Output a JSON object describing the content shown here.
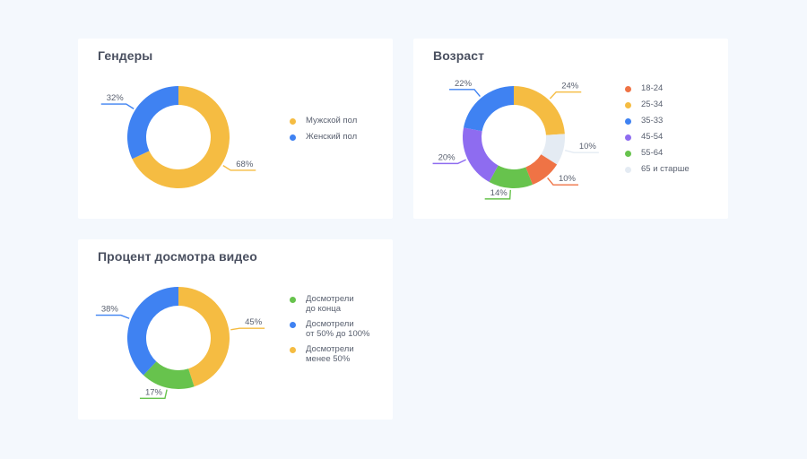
{
  "charts": {
    "gender": {
      "title": "Гендеры"
    },
    "age": {
      "title": "Возраст"
    },
    "view": {
      "title": "Процент досмотра видео"
    }
  },
  "chart_data": [
    {
      "type": "pie",
      "title": "Гендеры",
      "slices": [
        {
          "name": "Мужской пол",
          "value": 68,
          "label": "68%",
          "color": "#f5bc42"
        },
        {
          "name": "Женский пол",
          "value": 32,
          "label": "32%",
          "color": "#3f82f2"
        }
      ]
    },
    {
      "type": "pie",
      "title": "Возраст",
      "slices": [
        {
          "name": "25-34",
          "value": 24,
          "label": "24%",
          "color": "#f5bc42"
        },
        {
          "name": "65 и старше",
          "value": 10,
          "label": "10%",
          "color": "#e4ebf3"
        },
        {
          "name": "18-24",
          "value": 10,
          "label": "10%",
          "color": "#ef7345"
        },
        {
          "name": "55-64",
          "value": 14,
          "label": "14%",
          "color": "#67c34d"
        },
        {
          "name": "45-54",
          "value": 20,
          "label": "20%",
          "color": "#8e6cf0"
        },
        {
          "name": "35-33",
          "value": 22,
          "label": "22%",
          "color": "#3f82f2"
        }
      ],
      "legend": [
        {
          "name": "18-24",
          "color": "#ef7345"
        },
        {
          "name": "25-34",
          "color": "#f5bc42"
        },
        {
          "name": "35-33",
          "color": "#3f82f2"
        },
        {
          "name": "45-54",
          "color": "#8e6cf0"
        },
        {
          "name": "55-64",
          "color": "#67c34d"
        },
        {
          "name": "65 и старше",
          "color": "#e4ebf3"
        }
      ]
    },
    {
      "type": "pie",
      "title": "Процент досмотра видео",
      "slices": [
        {
          "name": "Досмотрели менее 50%",
          "value": 45,
          "label": "45%",
          "color": "#f5bc42"
        },
        {
          "name": "Досмотрели до конца",
          "value": 17,
          "label": "17%",
          "color": "#67c34d"
        },
        {
          "name": "Досмотрели от 50% до 100%",
          "value": 38,
          "label": "38%",
          "color": "#3f82f2"
        }
      ],
      "legend": [
        {
          "lines": [
            "Досмотрели",
            "до конца"
          ],
          "color": "#67c34d"
        },
        {
          "lines": [
            "Досмотрели",
            "от 50% до 100%"
          ],
          "color": "#3f82f2"
        },
        {
          "lines": [
            "Досмотрели",
            "менее 50%"
          ],
          "color": "#f5bc42"
        }
      ]
    }
  ]
}
